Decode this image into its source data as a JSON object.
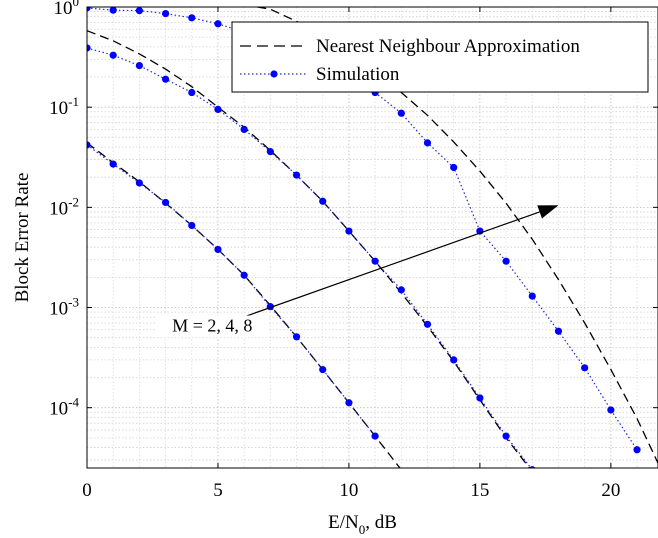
{
  "chart_data": {
    "type": "line",
    "title": "",
    "xlabel": "E/N",
    "xlabel_subscript": "0",
    "xlabel_suffix": ", dB",
    "ylabel": "Block Error Rate",
    "xlim": [
      0,
      21.8
    ],
    "ylim": [
      2.5e-05,
      1
    ],
    "y_scale": "log",
    "grid": true,
    "legend_position": "top-right",
    "x_ticks": [
      0,
      5,
      10,
      15,
      20
    ],
    "x_tick_labels": [
      "0",
      "5",
      "10",
      "15",
      "20"
    ],
    "y_ticks": [
      {
        "value": 1,
        "base": "10",
        "exp": "0"
      },
      {
        "value": 0.1,
        "base": "10",
        "exp": "-1"
      },
      {
        "value": 0.01,
        "base": "10",
        "exp": "-2"
      },
      {
        "value": 0.001,
        "base": "10",
        "exp": "-3"
      },
      {
        "value": 0.0001,
        "base": "10",
        "exp": "-4"
      }
    ],
    "legend": [
      {
        "label": "Nearest Neighbour Approximation",
        "style": "dashed"
      },
      {
        "label": "Simulation",
        "style": "dotted-marker"
      }
    ],
    "annotation": {
      "text": "M = 2, 4, 8",
      "arrow_from": [
        7,
        0.001
      ],
      "arrow_to": [
        18,
        0.0105
      ]
    },
    "series": [
      {
        "group": "M=2",
        "kind": "approximation",
        "x": [
          0,
          1,
          2,
          3,
          4,
          5,
          6,
          7,
          8,
          9,
          10,
          11,
          12
        ],
        "y": [
          0.044,
          0.028,
          0.018,
          0.011,
          0.0066,
          0.0038,
          0.0021,
          0.00105,
          0.00051,
          0.00024,
          0.000112,
          5.2e-05,
          2.4e-05
        ]
      },
      {
        "group": "M=2",
        "kind": "simulation",
        "x": [
          0,
          1,
          2,
          3,
          4,
          5,
          6,
          7,
          8,
          9,
          10,
          11
        ],
        "y": [
          0.042,
          0.027,
          0.0175,
          0.0112,
          0.0066,
          0.0038,
          0.0021,
          0.00102,
          0.00051,
          0.00024,
          0.000112,
          5.2e-05
        ]
      },
      {
        "group": "M=4",
        "kind": "approximation",
        "x": [
          0,
          1,
          2,
          3,
          4,
          5,
          6,
          7,
          8,
          9,
          10,
          11,
          12,
          13,
          14,
          15,
          16,
          17
        ],
        "y": [
          0.58,
          0.46,
          0.34,
          0.24,
          0.16,
          0.1,
          0.063,
          0.037,
          0.021,
          0.0115,
          0.0058,
          0.0029,
          0.0014,
          0.00065,
          0.00029,
          0.00012,
          5e-05,
          2.3e-05
        ]
      },
      {
        "group": "M=4",
        "kind": "simulation",
        "x": [
          0,
          1,
          2,
          3,
          4,
          5,
          6,
          7,
          8,
          9,
          10,
          11,
          12,
          13,
          14,
          15,
          16,
          17
        ],
        "y": [
          0.39,
          0.33,
          0.26,
          0.19,
          0.14,
          0.095,
          0.06,
          0.036,
          0.021,
          0.0115,
          0.0058,
          0.0029,
          0.0015,
          0.00068,
          0.0003,
          0.000125,
          5.2e-05,
          2.4e-05
        ]
      },
      {
        "group": "M=8",
        "kind": "approximation",
        "x": [
          6.5,
          7,
          8,
          9,
          10,
          11,
          12,
          13,
          14,
          15,
          16,
          17,
          18,
          19,
          20,
          21,
          21.8
        ],
        "y": [
          1,
          0.95,
          0.72,
          0.53,
          0.36,
          0.23,
          0.14,
          0.083,
          0.045,
          0.023,
          0.011,
          0.0048,
          0.0019,
          0.0007,
          0.00024,
          7.8e-05,
          2.8e-05
        ]
      },
      {
        "group": "M=8",
        "kind": "simulation",
        "x": [
          0,
          1,
          2,
          3,
          4,
          5,
          6,
          7,
          8,
          9,
          10,
          11,
          12,
          13,
          14,
          15,
          16,
          17,
          18,
          19,
          20,
          21
        ],
        "y": [
          0.98,
          0.93,
          0.92,
          0.86,
          0.78,
          0.68,
          0.56,
          0.45,
          0.35,
          0.25,
          0.19,
          0.14,
          0.087,
          0.044,
          0.025,
          0.0058,
          0.0029,
          0.0013,
          0.00058,
          0.00025,
          9.5e-05,
          3.8e-05
        ]
      }
    ],
    "colors": {
      "approximation": "#000000",
      "simulation_line": "#1f2bd8",
      "simulation_marker": "#0000ff",
      "grid": "#bdbdbd",
      "axis": "#000000"
    }
  }
}
